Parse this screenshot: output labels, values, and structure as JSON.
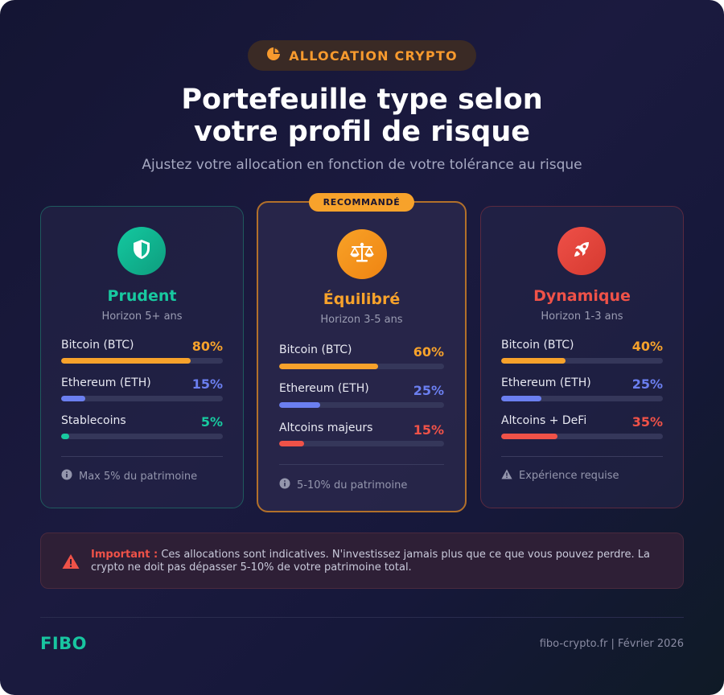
{
  "header": {
    "badge_icon": "pie-chart-icon",
    "badge": "ALLOCATION CRYPTO",
    "title_line1": "Portefeuille type selon",
    "title_line2": "votre profil de risque",
    "subtitle": "Ajustez votre allocation en fonction de votre tolérance au risque"
  },
  "profiles": [
    {
      "name": "Prudent",
      "horizon": "Horizon 5+ ans",
      "icon": "shield-icon",
      "accent": "#18c9a0",
      "allocations": [
        {
          "label": "Bitcoin (BTC)",
          "percent": "80%",
          "value": 80,
          "color": "#f7a22b"
        },
        {
          "label": "Ethereum (ETH)",
          "percent": "15%",
          "value": 15,
          "color": "#6b7ff0"
        },
        {
          "label": "Stablecoins",
          "percent": "5%",
          "value": 5,
          "color": "#18c9a0"
        }
      ],
      "note_icon": "info-icon",
      "note": "Max 5% du patrimoine"
    },
    {
      "name": "Équilibré",
      "horizon": "Horizon 3-5 ans",
      "icon": "scales-icon",
      "accent": "#f7a22b",
      "badge": "RECOMMANDÉ",
      "allocations": [
        {
          "label": "Bitcoin (BTC)",
          "percent": "60%",
          "value": 60,
          "color": "#f7a22b"
        },
        {
          "label": "Ethereum (ETH)",
          "percent": "25%",
          "value": 25,
          "color": "#6b7ff0"
        },
        {
          "label": "Altcoins majeurs",
          "percent": "15%",
          "value": 15,
          "color": "#ef5248"
        }
      ],
      "note_icon": "info-icon",
      "note": "5-10% du patrimoine"
    },
    {
      "name": "Dynamique",
      "horizon": "Horizon 1-3 ans",
      "icon": "rocket-icon",
      "accent": "#ef5248",
      "allocations": [
        {
          "label": "Bitcoin (BTC)",
          "percent": "40%",
          "value": 40,
          "color": "#f7a22b"
        },
        {
          "label": "Ethereum (ETH)",
          "percent": "25%",
          "value": 25,
          "color": "#6b7ff0"
        },
        {
          "label": "Altcoins + DeFi",
          "percent": "35%",
          "value": 35,
          "color": "#ef5248"
        }
      ],
      "note_icon": "warning-icon",
      "note": "Expérience requise"
    }
  ],
  "warning": {
    "icon": "warning-triangle-icon",
    "label": "Important :",
    "text": " Ces allocations sont indicatives. N'investissez jamais plus que ce que vous pouvez perdre. La crypto ne doit pas dépasser 5-10% de votre patrimoine total."
  },
  "footer": {
    "logo": "FIBO",
    "right": "fibo-crypto.fr | Février 2026"
  }
}
